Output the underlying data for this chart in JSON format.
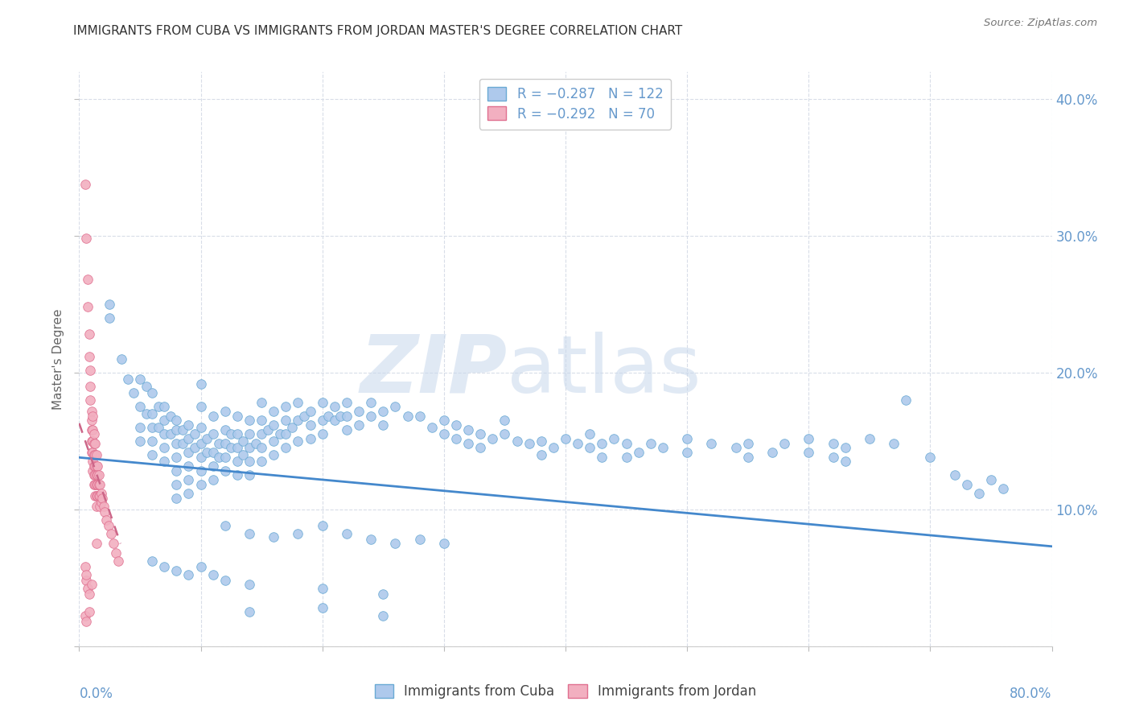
{
  "title": "IMMIGRANTS FROM CUBA VS IMMIGRANTS FROM JORDAN MASTER'S DEGREE CORRELATION CHART",
  "source": "Source: ZipAtlas.com",
  "ylabel": "Master's Degree",
  "xlim": [
    0.0,
    0.8
  ],
  "ylim": [
    0.0,
    0.42
  ],
  "watermark_line1": "ZIP",
  "watermark_line2": "atlas",
  "cuba_color": "#aec9ec",
  "cuba_edge_color": "#6aaad4",
  "jordan_color": "#f2afc0",
  "jordan_edge_color": "#e07090",
  "cuba_line_color": "#4488cc",
  "jordan_line_color": "#cc6688",
  "axis_color": "#6699cc",
  "grid_color": "#d8dde8",
  "title_color": "#333333",
  "source_color": "#777777",
  "background_color": "#ffffff",
  "cuba_line_y0": 0.138,
  "cuba_line_y1": 0.073,
  "jordan_line_x0": 0.0,
  "jordan_line_x1": 0.034,
  "jordan_line_y0": 0.163,
  "jordan_line_y1": 0.075,
  "cuba_scatter": [
    [
      0.025,
      0.25
    ],
    [
      0.025,
      0.24
    ],
    [
      0.035,
      0.21
    ],
    [
      0.04,
      0.195
    ],
    [
      0.045,
      0.185
    ],
    [
      0.05,
      0.195
    ],
    [
      0.05,
      0.175
    ],
    [
      0.05,
      0.16
    ],
    [
      0.05,
      0.15
    ],
    [
      0.055,
      0.19
    ],
    [
      0.055,
      0.17
    ],
    [
      0.06,
      0.185
    ],
    [
      0.06,
      0.17
    ],
    [
      0.06,
      0.16
    ],
    [
      0.06,
      0.15
    ],
    [
      0.06,
      0.14
    ],
    [
      0.065,
      0.175
    ],
    [
      0.065,
      0.16
    ],
    [
      0.07,
      0.175
    ],
    [
      0.07,
      0.165
    ],
    [
      0.07,
      0.155
    ],
    [
      0.07,
      0.145
    ],
    [
      0.07,
      0.135
    ],
    [
      0.075,
      0.168
    ],
    [
      0.075,
      0.155
    ],
    [
      0.08,
      0.165
    ],
    [
      0.08,
      0.158
    ],
    [
      0.08,
      0.148
    ],
    [
      0.08,
      0.138
    ],
    [
      0.08,
      0.128
    ],
    [
      0.08,
      0.118
    ],
    [
      0.08,
      0.108
    ],
    [
      0.085,
      0.158
    ],
    [
      0.085,
      0.148
    ],
    [
      0.09,
      0.162
    ],
    [
      0.09,
      0.152
    ],
    [
      0.09,
      0.142
    ],
    [
      0.09,
      0.132
    ],
    [
      0.09,
      0.122
    ],
    [
      0.09,
      0.112
    ],
    [
      0.095,
      0.155
    ],
    [
      0.095,
      0.145
    ],
    [
      0.1,
      0.192
    ],
    [
      0.1,
      0.175
    ],
    [
      0.1,
      0.16
    ],
    [
      0.1,
      0.148
    ],
    [
      0.1,
      0.138
    ],
    [
      0.1,
      0.128
    ],
    [
      0.1,
      0.118
    ],
    [
      0.105,
      0.152
    ],
    [
      0.105,
      0.142
    ],
    [
      0.11,
      0.168
    ],
    [
      0.11,
      0.155
    ],
    [
      0.11,
      0.142
    ],
    [
      0.11,
      0.132
    ],
    [
      0.11,
      0.122
    ],
    [
      0.115,
      0.148
    ],
    [
      0.115,
      0.138
    ],
    [
      0.12,
      0.172
    ],
    [
      0.12,
      0.158
    ],
    [
      0.12,
      0.148
    ],
    [
      0.12,
      0.138
    ],
    [
      0.12,
      0.128
    ],
    [
      0.125,
      0.155
    ],
    [
      0.125,
      0.145
    ],
    [
      0.13,
      0.168
    ],
    [
      0.13,
      0.155
    ],
    [
      0.13,
      0.145
    ],
    [
      0.13,
      0.135
    ],
    [
      0.13,
      0.125
    ],
    [
      0.135,
      0.15
    ],
    [
      0.135,
      0.14
    ],
    [
      0.14,
      0.165
    ],
    [
      0.14,
      0.155
    ],
    [
      0.14,
      0.145
    ],
    [
      0.14,
      0.135
    ],
    [
      0.14,
      0.125
    ],
    [
      0.145,
      0.148
    ],
    [
      0.15,
      0.178
    ],
    [
      0.15,
      0.165
    ],
    [
      0.15,
      0.155
    ],
    [
      0.15,
      0.145
    ],
    [
      0.15,
      0.135
    ],
    [
      0.155,
      0.158
    ],
    [
      0.16,
      0.172
    ],
    [
      0.16,
      0.162
    ],
    [
      0.16,
      0.15
    ],
    [
      0.16,
      0.14
    ],
    [
      0.165,
      0.155
    ],
    [
      0.17,
      0.175
    ],
    [
      0.17,
      0.165
    ],
    [
      0.17,
      0.155
    ],
    [
      0.17,
      0.145
    ],
    [
      0.175,
      0.16
    ],
    [
      0.18,
      0.178
    ],
    [
      0.18,
      0.165
    ],
    [
      0.18,
      0.15
    ],
    [
      0.185,
      0.168
    ],
    [
      0.19,
      0.172
    ],
    [
      0.19,
      0.162
    ],
    [
      0.19,
      0.152
    ],
    [
      0.2,
      0.178
    ],
    [
      0.2,
      0.165
    ],
    [
      0.2,
      0.155
    ],
    [
      0.205,
      0.168
    ],
    [
      0.21,
      0.175
    ],
    [
      0.21,
      0.165
    ],
    [
      0.215,
      0.168
    ],
    [
      0.22,
      0.178
    ],
    [
      0.22,
      0.168
    ],
    [
      0.22,
      0.158
    ],
    [
      0.23,
      0.172
    ],
    [
      0.23,
      0.162
    ],
    [
      0.24,
      0.178
    ],
    [
      0.24,
      0.168
    ],
    [
      0.25,
      0.172
    ],
    [
      0.25,
      0.162
    ],
    [
      0.26,
      0.175
    ],
    [
      0.27,
      0.168
    ],
    [
      0.28,
      0.168
    ],
    [
      0.29,
      0.16
    ],
    [
      0.3,
      0.165
    ],
    [
      0.3,
      0.155
    ],
    [
      0.31,
      0.162
    ],
    [
      0.31,
      0.152
    ],
    [
      0.32,
      0.158
    ],
    [
      0.32,
      0.148
    ],
    [
      0.33,
      0.155
    ],
    [
      0.33,
      0.145
    ],
    [
      0.34,
      0.152
    ],
    [
      0.35,
      0.165
    ],
    [
      0.35,
      0.155
    ],
    [
      0.36,
      0.15
    ],
    [
      0.37,
      0.148
    ],
    [
      0.38,
      0.15
    ],
    [
      0.38,
      0.14
    ],
    [
      0.39,
      0.145
    ],
    [
      0.4,
      0.152
    ],
    [
      0.41,
      0.148
    ],
    [
      0.42,
      0.155
    ],
    [
      0.42,
      0.145
    ],
    [
      0.43,
      0.148
    ],
    [
      0.43,
      0.138
    ],
    [
      0.44,
      0.152
    ],
    [
      0.45,
      0.148
    ],
    [
      0.45,
      0.138
    ],
    [
      0.46,
      0.142
    ],
    [
      0.47,
      0.148
    ],
    [
      0.48,
      0.145
    ],
    [
      0.5,
      0.152
    ],
    [
      0.5,
      0.142
    ],
    [
      0.52,
      0.148
    ],
    [
      0.54,
      0.145
    ],
    [
      0.55,
      0.148
    ],
    [
      0.55,
      0.138
    ],
    [
      0.57,
      0.142
    ],
    [
      0.58,
      0.148
    ],
    [
      0.6,
      0.152
    ],
    [
      0.6,
      0.142
    ],
    [
      0.62,
      0.148
    ],
    [
      0.62,
      0.138
    ],
    [
      0.63,
      0.145
    ],
    [
      0.63,
      0.135
    ],
    [
      0.65,
      0.152
    ],
    [
      0.67,
      0.148
    ],
    [
      0.68,
      0.18
    ],
    [
      0.7,
      0.138
    ],
    [
      0.72,
      0.125
    ],
    [
      0.73,
      0.118
    ],
    [
      0.74,
      0.112
    ],
    [
      0.75,
      0.122
    ],
    [
      0.76,
      0.115
    ],
    [
      0.12,
      0.088
    ],
    [
      0.14,
      0.082
    ],
    [
      0.16,
      0.08
    ],
    [
      0.18,
      0.082
    ],
    [
      0.2,
      0.088
    ],
    [
      0.22,
      0.082
    ],
    [
      0.24,
      0.078
    ],
    [
      0.26,
      0.075
    ],
    [
      0.28,
      0.078
    ],
    [
      0.3,
      0.075
    ],
    [
      0.06,
      0.062
    ],
    [
      0.07,
      0.058
    ],
    [
      0.08,
      0.055
    ],
    [
      0.09,
      0.052
    ],
    [
      0.1,
      0.058
    ],
    [
      0.11,
      0.052
    ],
    [
      0.12,
      0.048
    ],
    [
      0.14,
      0.045
    ],
    [
      0.2,
      0.042
    ],
    [
      0.25,
      0.038
    ],
    [
      0.14,
      0.025
    ],
    [
      0.2,
      0.028
    ],
    [
      0.25,
      0.022
    ]
  ],
  "jordan_scatter": [
    [
      0.005,
      0.338
    ],
    [
      0.006,
      0.298
    ],
    [
      0.007,
      0.268
    ],
    [
      0.007,
      0.248
    ],
    [
      0.008,
      0.228
    ],
    [
      0.008,
      0.212
    ],
    [
      0.009,
      0.202
    ],
    [
      0.009,
      0.19
    ],
    [
      0.009,
      0.18
    ],
    [
      0.01,
      0.172
    ],
    [
      0.01,
      0.165
    ],
    [
      0.01,
      0.158
    ],
    [
      0.01,
      0.15
    ],
    [
      0.01,
      0.142
    ],
    [
      0.011,
      0.168
    ],
    [
      0.011,
      0.158
    ],
    [
      0.011,
      0.15
    ],
    [
      0.011,
      0.142
    ],
    [
      0.011,
      0.135
    ],
    [
      0.011,
      0.128
    ],
    [
      0.012,
      0.155
    ],
    [
      0.012,
      0.148
    ],
    [
      0.012,
      0.14
    ],
    [
      0.012,
      0.132
    ],
    [
      0.012,
      0.125
    ],
    [
      0.012,
      0.118
    ],
    [
      0.013,
      0.148
    ],
    [
      0.013,
      0.14
    ],
    [
      0.013,
      0.132
    ],
    [
      0.013,
      0.125
    ],
    [
      0.013,
      0.118
    ],
    [
      0.013,
      0.11
    ],
    [
      0.014,
      0.14
    ],
    [
      0.014,
      0.132
    ],
    [
      0.014,
      0.125
    ],
    [
      0.014,
      0.118
    ],
    [
      0.014,
      0.11
    ],
    [
      0.014,
      0.102
    ],
    [
      0.015,
      0.132
    ],
    [
      0.015,
      0.125
    ],
    [
      0.015,
      0.118
    ],
    [
      0.015,
      0.11
    ],
    [
      0.016,
      0.125
    ],
    [
      0.016,
      0.118
    ],
    [
      0.016,
      0.11
    ],
    [
      0.017,
      0.118
    ],
    [
      0.017,
      0.11
    ],
    [
      0.017,
      0.102
    ],
    [
      0.018,
      0.112
    ],
    [
      0.018,
      0.105
    ],
    [
      0.019,
      0.108
    ],
    [
      0.02,
      0.102
    ],
    [
      0.021,
      0.098
    ],
    [
      0.022,
      0.092
    ],
    [
      0.024,
      0.088
    ],
    [
      0.026,
      0.082
    ],
    [
      0.028,
      0.075
    ],
    [
      0.03,
      0.068
    ],
    [
      0.032,
      0.062
    ],
    [
      0.006,
      0.048
    ],
    [
      0.007,
      0.042
    ],
    [
      0.008,
      0.038
    ],
    [
      0.005,
      0.058
    ],
    [
      0.006,
      0.052
    ],
    [
      0.005,
      0.022
    ],
    [
      0.006,
      0.018
    ],
    [
      0.008,
      0.025
    ],
    [
      0.01,
      0.045
    ],
    [
      0.014,
      0.075
    ]
  ]
}
